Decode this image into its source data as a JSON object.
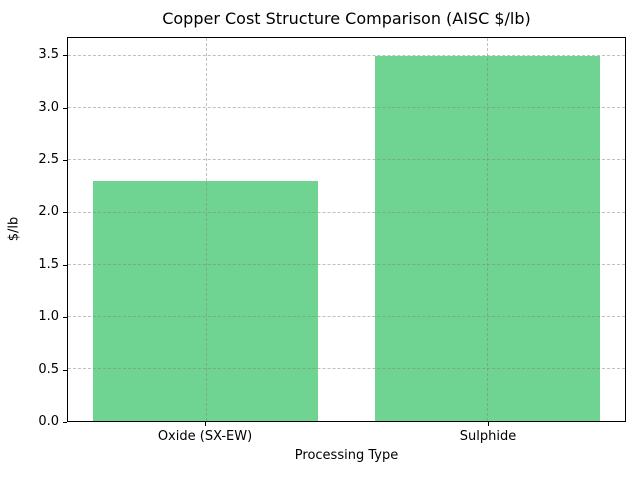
{
  "chart_data": {
    "type": "bar",
    "title": "Copper Cost Structure Comparison (AISC $/lb)",
    "xlabel": "Processing Type",
    "ylabel": "$/lb",
    "categories": [
      "Oxide (SX-EW)",
      "Sulphide"
    ],
    "values": [
      2.3,
      3.5
    ],
    "yticks": [
      0.0,
      0.5,
      1.0,
      1.5,
      2.0,
      2.5,
      3.0,
      3.5
    ],
    "ylim": [
      0,
      3.675
    ],
    "xlim": [
      -0.49,
      1.49
    ],
    "bar_width_fraction": 0.8,
    "bar_color": "#6fd491",
    "grid": "dashed, horizontal and vertical, drawn above bars",
    "legend": "none"
  }
}
